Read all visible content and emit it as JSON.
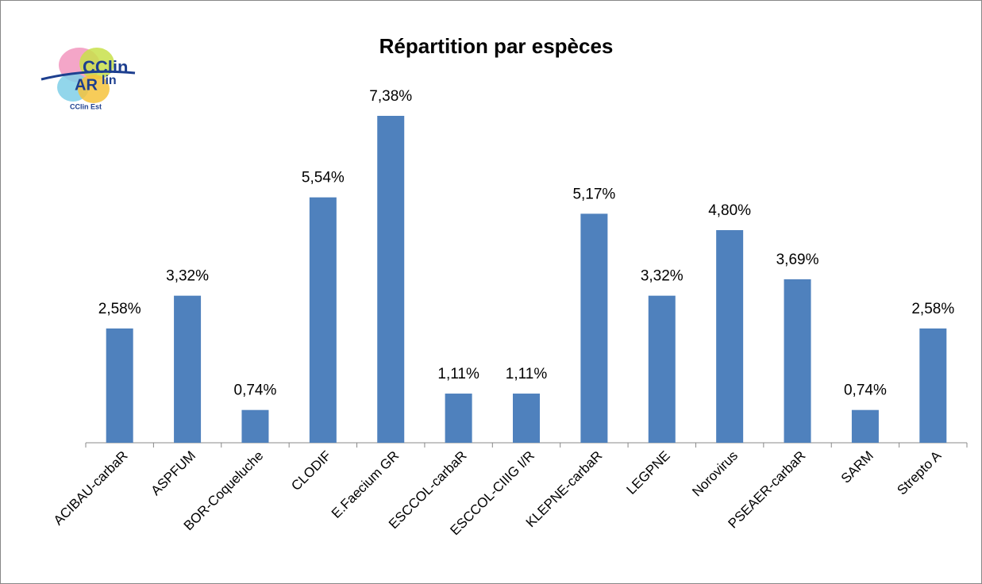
{
  "chart_data": {
    "type": "bar",
    "title": "Répartition par espèces",
    "logo": [
      "CClin",
      "AR",
      "lin",
      "CClin Est"
    ],
    "categories": [
      "ACIBAU-carbaR",
      "ASPFUM",
      "BOR-Coqueluche",
      "CLODIF",
      "E.Faecium GR",
      "ESCCOL-carbaR",
      "ESCCOL-CIIIG I/R",
      "KLEPNE-carbaR",
      "LEGPNE",
      "Norovirus",
      "PSEAER-carbaR",
      "SARM",
      "Strepto A"
    ],
    "values": [
      2.58,
      3.32,
      0.74,
      5.54,
      7.38,
      1.11,
      1.11,
      5.17,
      3.32,
      4.8,
      3.69,
      0.74,
      2.58
    ],
    "value_labels": [
      "2,58%",
      "3,32%",
      "0,74%",
      "5,54%",
      "7,38%",
      "1,11%",
      "1,11%",
      "5,17%",
      "3,32%",
      "4,80%",
      "3,69%",
      "0,74%",
      "2,58%"
    ],
    "color": "#4f81bd"
  }
}
